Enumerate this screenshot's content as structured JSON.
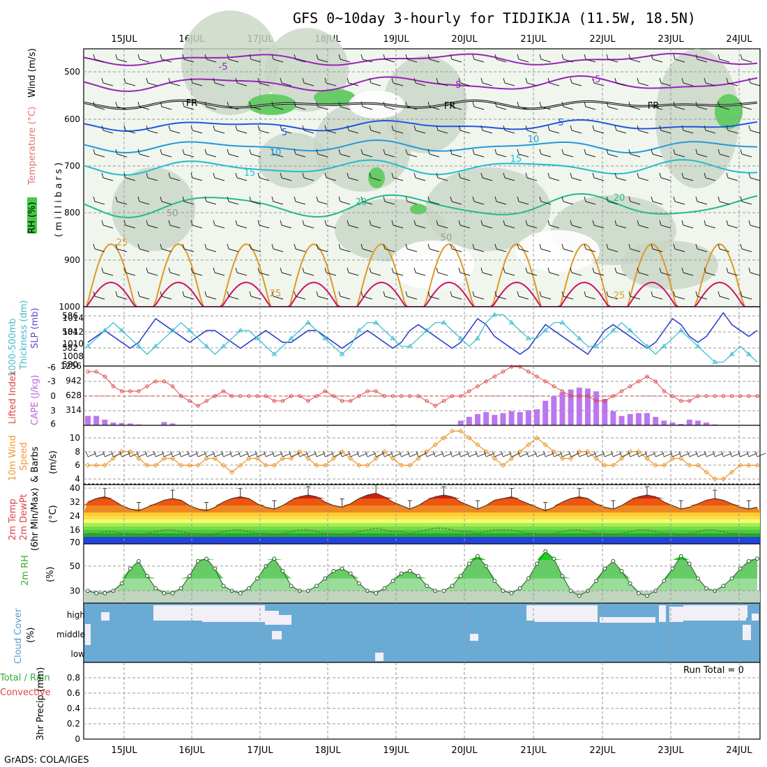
{
  "title": "GFS 0~10day 3-hourly for TIDJIKJA (11.5W, 18.5N)",
  "footer": "GrADS: COLA/IGES",
  "run_total": "Run Total = 0",
  "dates": [
    "15JUL",
    "16JUL",
    "17JUL",
    "18JUL",
    "19JUL",
    "20JUL",
    "21JUL",
    "22JUL",
    "23JUL",
    "24JUL"
  ],
  "panels": {
    "upper": {
      "labels": [
        "Wind (m/s)",
        "Temperature (°C)",
        "RH (%)",
        "( m i l l i b a r s )"
      ],
      "ticks": [
        "500",
        "600",
        "700",
        "800",
        "900",
        "1000"
      ],
      "contour_labels": [
        "-5",
        "-5",
        "-5",
        "FR",
        "FR",
        "FR",
        "5",
        "10",
        "15",
        "20",
        "25",
        "25",
        "25",
        "10",
        "15",
        "20",
        "-5",
        "50",
        "50"
      ]
    },
    "slp": {
      "labels": [
        "1000-500mb",
        "Thickness (dm)",
        "SLP (mb)"
      ],
      "left_ticks": [
        "586",
        "584",
        "582",
        "580"
      ],
      "right_ticks": [
        "1014",
        "1012",
        "1010",
        "1008"
      ]
    },
    "cape": {
      "labels": [
        "Lifted Index",
        "CAPE (J/kg)"
      ],
      "left_ticks": [
        "-6",
        "-3",
        "0",
        "3",
        "6"
      ],
      "right_ticks": [
        "1256",
        "942",
        "628",
        "314"
      ]
    },
    "wind10": {
      "labels": [
        "10m Wind",
        "Speed",
        "& Barbs",
        "(m/s)"
      ],
      "ticks": [
        "10",
        "8",
        "6",
        "4"
      ]
    },
    "temp": {
      "labels": [
        "2m Temp",
        "2m DewPt",
        "(6hr Min/Max)",
        "(°C)"
      ],
      "ticks": [
        "40",
        "32",
        "24",
        "16",
        "70"
      ]
    },
    "rh": {
      "labels": [
        "2m RH",
        "(%)"
      ],
      "ticks": [
        "50",
        "30"
      ]
    },
    "cloud": {
      "labels": [
        "Cloud Cover",
        "(%)"
      ],
      "ticks": [
        "high",
        "middle",
        "low"
      ]
    },
    "precip": {
      "labels": [
        "Total / Rain",
        "Convective",
        "3hr Precip (mm)"
      ],
      "ticks": [
        "0.8",
        "0.6",
        "0.4",
        "0.2",
        "0"
      ]
    }
  },
  "chart_data": [
    {
      "type": "line",
      "name": "SLP (mb)",
      "x_step": "3hr",
      "values": [
        1010,
        1011,
        1012,
        1011,
        1010,
        1009,
        1010,
        1012,
        1014,
        1013,
        1012,
        1011,
        1010,
        1011,
        1012,
        1012,
        1011,
        1010,
        1009,
        1010,
        1011,
        1012,
        1011,
        1010,
        1010,
        1011,
        1012,
        1012,
        1011,
        1010,
        1009,
        1010,
        1011,
        1012,
        1011,
        1010,
        1009,
        1010,
        1012,
        1013,
        1012,
        1011,
        1010,
        1009,
        1010,
        1012,
        1014,
        1013,
        1011,
        1010,
        1009,
        1008,
        1009,
        1011,
        1013,
        1012,
        1011,
        1010,
        1009,
        1008,
        1010,
        1012,
        1013,
        1012,
        1011,
        1010,
        1009,
        1010,
        1012,
        1014,
        1013,
        1011,
        1010,
        1011,
        1013,
        1015,
        1013,
        1012,
        1011,
        1012
      ]
    },
    {
      "type": "line",
      "name": "1000-500mb Thickness (dm)",
      "values": [
        582,
        583,
        584,
        585,
        584,
        583,
        582,
        581,
        582,
        583,
        584,
        585,
        584,
        583,
        582,
        581,
        582,
        583,
        584,
        584,
        583,
        582,
        581,
        582,
        583,
        584,
        585,
        584,
        583,
        582,
        581,
        582,
        584,
        585,
        585,
        584,
        583,
        582,
        582,
        583,
        584,
        585,
        585,
        584,
        583,
        582,
        583,
        585,
        586,
        586,
        585,
        584,
        583,
        583,
        584,
        585,
        585,
        584,
        583,
        582,
        582,
        583,
        584,
        585,
        584,
        583,
        582,
        581,
        582,
        583,
        584,
        583,
        582,
        581,
        580,
        580,
        581,
        582,
        581,
        580
      ]
    },
    {
      "type": "bar",
      "name": "CAPE (J/kg)",
      "values": [
        200,
        200,
        120,
        60,
        50,
        40,
        20,
        0,
        0,
        70,
        40,
        0,
        0,
        0,
        0,
        0,
        0,
        0,
        0,
        0,
        0,
        0,
        0,
        0,
        0,
        0,
        0,
        0,
        0,
        0,
        0,
        0,
        0,
        0,
        0,
        0,
        20,
        0,
        0,
        0,
        0,
        0,
        0,
        0,
        100,
        180,
        240,
        280,
        220,
        260,
        300,
        280,
        320,
        340,
        520,
        620,
        700,
        760,
        800,
        780,
        720,
        560,
        300,
        200,
        240,
        260,
        260,
        180,
        100,
        60,
        30,
        120,
        100,
        60,
        20,
        0,
        0,
        0,
        0,
        0
      ]
    },
    {
      "type": "line",
      "name": "Lifted Index",
      "values": [
        -5,
        -5,
        -4,
        -2,
        -1,
        -1,
        -1,
        -2,
        -3,
        -3,
        -2,
        0,
        1,
        2,
        1,
        0,
        -1,
        0,
        0,
        0,
        0,
        0,
        1,
        1,
        0,
        0,
        1,
        0,
        -1,
        0,
        1,
        1,
        0,
        -1,
        -1,
        0,
        0,
        0,
        0,
        0,
        1,
        2,
        1,
        0,
        0,
        -1,
        -2,
        -3,
        -4,
        -5,
        -6,
        -6,
        -5,
        -4,
        -3,
        -2,
        -1,
        0,
        0,
        0,
        1,
        1,
        0,
        -1,
        -2,
        -3,
        -4,
        -3,
        -1,
        0,
        1,
        1,
        0,
        0,
        0,
        0,
        0,
        0,
        0,
        0
      ]
    },
    {
      "type": "line",
      "name": "10m Wind Speed (m/s)",
      "values": [
        6,
        6,
        6,
        7,
        8,
        8,
        7,
        6,
        6,
        7,
        7,
        6,
        6,
        6,
        7,
        7,
        6,
        5,
        6,
        7,
        7,
        6,
        6,
        7,
        7,
        8,
        7,
        6,
        6,
        7,
        8,
        7,
        6,
        6,
        7,
        8,
        7,
        6,
        6,
        7,
        8,
        9,
        10,
        11,
        11,
        10,
        9,
        8,
        7,
        6,
        7,
        8,
        9,
        10,
        9,
        8,
        7,
        7,
        8,
        8,
        7,
        6,
        6,
        7,
        8,
        8,
        7,
        6,
        6,
        7,
        7,
        6,
        6,
        5,
        4,
        4,
        5,
        6,
        6,
        6
      ]
    },
    {
      "type": "line",
      "name": "2m Temp (°C)",
      "values": [
        32,
        34,
        35,
        33,
        30,
        28,
        27,
        29,
        31,
        33,
        34,
        33,
        30,
        28,
        27,
        29,
        32,
        34,
        35,
        34,
        31,
        29,
        28,
        30,
        33,
        35,
        36,
        35,
        32,
        30,
        29,
        31,
        34,
        36,
        37,
        35,
        32,
        30,
        28,
        30,
        33,
        35,
        36,
        35,
        32,
        30,
        28,
        30,
        33,
        34,
        35,
        33,
        31,
        29,
        27,
        29,
        32,
        34,
        35,
        34,
        31,
        29,
        28,
        30,
        33,
        35,
        36,
        35,
        32,
        30,
        28,
        29,
        31,
        33,
        34,
        33,
        31,
        29,
        28,
        29
      ]
    },
    {
      "type": "line",
      "name": "2m DewPt (°C)",
      "values": [
        14,
        14,
        15,
        15,
        14,
        14,
        13,
        14,
        15,
        16,
        16,
        15,
        14,
        14,
        13,
        14,
        15,
        16,
        16,
        15,
        14,
        14,
        13,
        14,
        15,
        16,
        16,
        15,
        14,
        14,
        13,
        14,
        15,
        16,
        17,
        16,
        15,
        15,
        14,
        15,
        16,
        17,
        17,
        16,
        15,
        15,
        14,
        15,
        16,
        16,
        16,
        15,
        14,
        14,
        13,
        14,
        15,
        16,
        16,
        15,
        14,
        14,
        13,
        14,
        15,
        16,
        16,
        15,
        14,
        14,
        13,
        14,
        15,
        16,
        16,
        15,
        14,
        14,
        13,
        14
      ]
    },
    {
      "type": "line",
      "name": "2m RH (%)",
      "values": [
        30,
        28,
        28,
        30,
        36,
        48,
        54,
        42,
        32,
        28,
        28,
        32,
        42,
        54,
        56,
        48,
        34,
        30,
        28,
        32,
        40,
        50,
        56,
        46,
        34,
        30,
        30,
        34,
        40,
        46,
        48,
        44,
        36,
        30,
        28,
        32,
        38,
        44,
        46,
        42,
        34,
        30,
        30,
        34,
        42,
        52,
        58,
        50,
        38,
        30,
        28,
        32,
        40,
        52,
        62,
        56,
        42,
        30,
        26,
        30,
        38,
        48,
        54,
        46,
        36,
        28,
        26,
        30,
        38,
        48,
        58,
        52,
        40,
        32,
        30,
        34,
        40,
        48,
        54,
        56
      ]
    },
    {
      "type": "area",
      "name": "3hr Precip (mm)",
      "values": [
        0
      ],
      "ylim": [
        0,
        1
      ]
    }
  ]
}
